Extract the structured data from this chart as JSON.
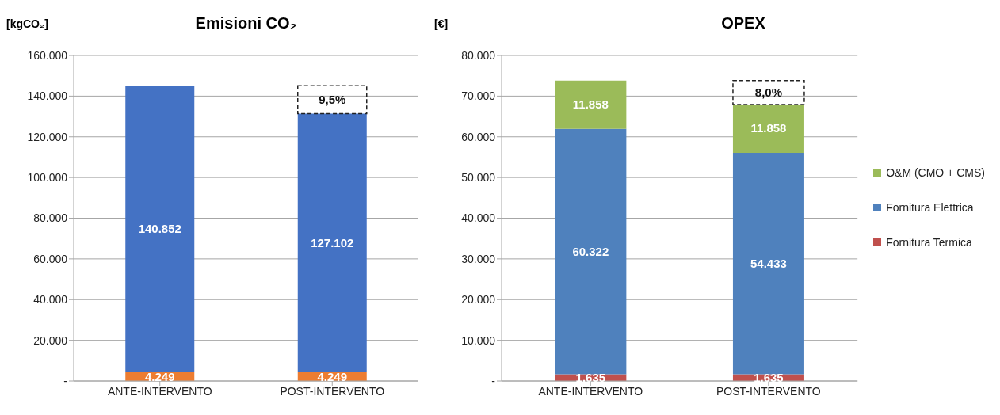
{
  "chart_data": [
    {
      "type": "bar",
      "title": "Emisioni CO₂",
      "ylabel": "[kgCO₂]",
      "stacked": true,
      "categories": [
        "ANTE-INTERVENTO",
        "POST-INTERVENTO"
      ],
      "series": [
        {
          "color": "#ed7d31",
          "values": [
            4249,
            4249
          ],
          "value_labels": [
            "4.249",
            "4.249"
          ]
        },
        {
          "color": "#4472c4",
          "values": [
            140852,
            127102
          ],
          "value_labels": [
            "140.852",
            "127.102"
          ]
        }
      ],
      "ylim": [
        0,
        160000
      ],
      "yticks": [
        {
          "value": 0,
          "label": "-"
        },
        {
          "value": 20000,
          "label": "20.000"
        },
        {
          "value": 40000,
          "label": "40.000"
        },
        {
          "value": 60000,
          "label": "60.000"
        },
        {
          "value": 80000,
          "label": "80.000"
        },
        {
          "value": 100000,
          "label": "100.000"
        },
        {
          "value": 120000,
          "label": "120.000"
        },
        {
          "value": 140000,
          "label": "140.000"
        },
        {
          "value": 160000,
          "label": "160.000"
        }
      ],
      "grid": "y",
      "annotations": [
        "9,5%"
      ]
    },
    {
      "type": "bar",
      "title": "OPEX",
      "ylabel": "[€]",
      "stacked": true,
      "categories": [
        "ANTE-INTERVENTO",
        "POST-INTERVENTO"
      ],
      "series": [
        {
          "name": "Fornitura Termica",
          "color": "#c0504d",
          "values": [
            1635,
            1635
          ],
          "value_labels": [
            "1.635",
            "1.635"
          ]
        },
        {
          "name": "Fornitura Elettrica",
          "color": "#4f81bd",
          "values": [
            60322,
            54433
          ],
          "value_labels": [
            "60.322",
            "54.433"
          ]
        },
        {
          "name": "O&M (CMO + CMS)",
          "color": "#9bbb59",
          "values": [
            11858,
            11858
          ],
          "value_labels": [
            "11.858",
            "11.858"
          ]
        }
      ],
      "ylim": [
        0,
        80000
      ],
      "yticks": [
        {
          "value": 0,
          "label": "-"
        },
        {
          "value": 10000,
          "label": "10.000"
        },
        {
          "value": 20000,
          "label": "20.000"
        },
        {
          "value": 30000,
          "label": "30.000"
        },
        {
          "value": 40000,
          "label": "40.000"
        },
        {
          "value": 50000,
          "label": "50.000"
        },
        {
          "value": 60000,
          "label": "60.000"
        },
        {
          "value": 70000,
          "label": "70.000"
        },
        {
          "value": 80000,
          "label": "80.000"
        }
      ],
      "grid": "y",
      "legend": "right",
      "annotations": [
        "8,0%"
      ]
    }
  ]
}
